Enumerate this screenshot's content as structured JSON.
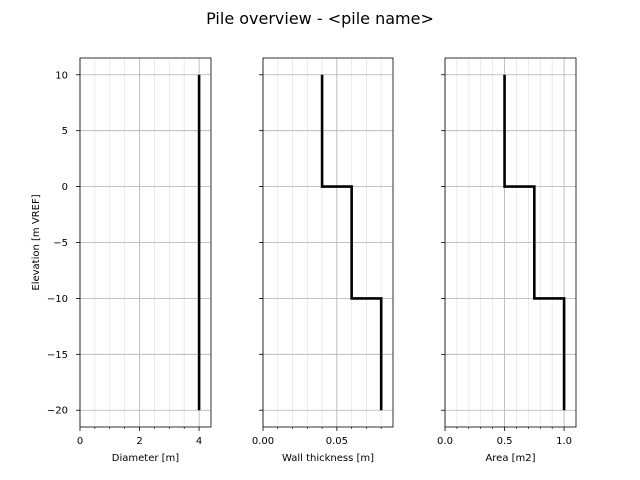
{
  "figure": {
    "title": "Pile overview - <pile name>"
  },
  "chart_data": [
    {
      "type": "line",
      "xlabel": "Diameter [m]",
      "ylabel": "Elevation [m VREF]",
      "xlim": [
        0,
        4.4
      ],
      "ylim": [
        -21.5,
        11.5
      ],
      "xticks": [
        0,
        2,
        4
      ],
      "xtick_labels": [
        "0",
        "2",
        "4"
      ],
      "minor_xticks": [
        0.5,
        1.0,
        1.5,
        2.5,
        3.0,
        3.5
      ],
      "yticks": [
        10,
        5,
        0,
        -5,
        -10,
        -15,
        -20
      ],
      "ytick_labels": [
        "10",
        "5",
        "0",
        "−5",
        "−10",
        "−15",
        "−20"
      ],
      "grid": true,
      "series": [
        {
          "x": [
            4,
            4
          ],
          "y": [
            10,
            -20
          ]
        }
      ]
    },
    {
      "type": "line",
      "xlabel": "Wall thickness [m]",
      "ylabel": "",
      "xlim": [
        0,
        0.088
      ],
      "ylim": [
        -21.5,
        11.5
      ],
      "xticks": [
        0,
        0.05
      ],
      "xtick_labels": [
        "0.00",
        "0.05"
      ],
      "minor_xticks": [
        0.01,
        0.02,
        0.03,
        0.04,
        0.06,
        0.07,
        0.08
      ],
      "yticks": [
        10,
        5,
        0,
        -5,
        -10,
        -15,
        -20
      ],
      "ytick_labels": [],
      "grid": true,
      "series": [
        {
          "x": [
            0.04,
            0.04,
            0.06,
            0.06,
            0.08,
            0.08
          ],
          "y": [
            10,
            0,
            0,
            -10,
            -10,
            -20
          ]
        }
      ]
    },
    {
      "type": "line",
      "xlabel": "Area [m2]",
      "ylabel": "",
      "xlim": [
        0,
        1.1
      ],
      "ylim": [
        -21.5,
        11.5
      ],
      "xticks": [
        0,
        0.5,
        1.0
      ],
      "xtick_labels": [
        "0.0",
        "0.5",
        "1.0"
      ],
      "minor_xticks": [
        0.1,
        0.2,
        0.3,
        0.4,
        0.6,
        0.7,
        0.8,
        0.9
      ],
      "yticks": [
        10,
        5,
        0,
        -5,
        -10,
        -15,
        -20
      ],
      "ytick_labels": [],
      "grid": true,
      "series": [
        {
          "x": [
            0.5,
            0.5,
            0.75,
            0.75,
            1.0,
            1.0
          ],
          "y": [
            10,
            0,
            0,
            -10,
            -10,
            -20
          ]
        }
      ]
    }
  ]
}
